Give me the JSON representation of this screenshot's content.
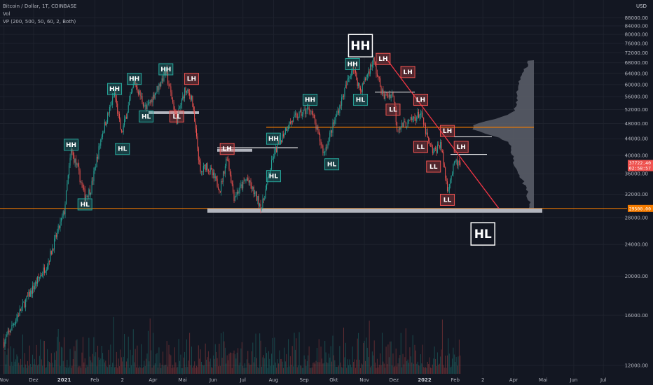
{
  "legend": {
    "line1": "Bitcoin / Dollar, 1T, COINBASE",
    "line2": "Vol",
    "line3": "VP (200, 500, 50, 60, 2, Both)"
  },
  "axis": {
    "unit": "USD",
    "y_ticks": [
      "88000.00",
      "84000.00",
      "80000.00",
      "76000.00",
      "72000.00",
      "68000.00",
      "64000.00",
      "60000.00",
      "56000.00",
      "52000.00",
      "48000.00",
      "44000.00",
      "40000.00",
      "36000.00",
      "32000.00",
      "28000.00",
      "24000.00",
      "20000.00",
      "16000.00",
      "12000.00"
    ],
    "y_values": [
      88000,
      84000,
      80000,
      76000,
      72000,
      68000,
      64000,
      60000,
      56000,
      52000,
      48000,
      44000,
      40000,
      36000,
      32000,
      28000,
      24000,
      20000,
      16000,
      12000
    ],
    "x_ticks": [
      {
        "label": "Nov",
        "bold": false
      },
      {
        "label": "Dez",
        "bold": false
      },
      {
        "label": "2021",
        "bold": true
      },
      {
        "label": "Feb",
        "bold": false
      },
      {
        "label": "2",
        "bold": false
      },
      {
        "label": "Apr",
        "bold": false
      },
      {
        "label": "Mai",
        "bold": false
      },
      {
        "label": "Jun",
        "bold": false
      },
      {
        "label": "Jul",
        "bold": false
      },
      {
        "label": "Aug",
        "bold": false
      },
      {
        "label": "Sep",
        "bold": false
      },
      {
        "label": "Okt",
        "bold": false
      },
      {
        "label": "Nov",
        "bold": false
      },
      {
        "label": "Dez",
        "bold": false
      },
      {
        "label": "2022",
        "bold": true
      },
      {
        "label": "Feb",
        "bold": false
      },
      {
        "label": "2",
        "bold": false
      },
      {
        "label": "Apr",
        "bold": false
      },
      {
        "label": "Mai",
        "bold": false
      },
      {
        "label": "Jun",
        "bold": false
      },
      {
        "label": "Jul",
        "bold": false
      }
    ]
  },
  "price_tags": {
    "current_price": "37722.40",
    "countdown": "02:58:57",
    "support": "29500.00"
  },
  "colors": {
    "background": "#131722",
    "up": "#26a69a",
    "down": "#ef5350",
    "hh_label": "#26a69a",
    "ll_label": "#ef5350",
    "support_zone": "#b2b5be",
    "orange_line": "#f57c00",
    "trendline": "#f23645",
    "volume_profile": "#5d606b"
  },
  "chart_data": {
    "type": "candlestick",
    "title": "Bitcoin / Dollar, 1T, COINBASE",
    "ylim": [
      10000,
      89000
    ],
    "y_scale": "log",
    "grid": true,
    "key_levels": {
      "horizontal_orange": 47000,
      "support_zone": 29500
    },
    "price_path": [
      [
        "2020-11-01",
        13700
      ],
      [
        "2020-11-15",
        16000
      ],
      [
        "2020-12-01",
        18800
      ],
      [
        "2020-12-15",
        21500
      ],
      [
        "2021-01-01",
        29000
      ],
      [
        "2021-01-08",
        41000
      ],
      [
        "2021-01-14",
        37500
      ],
      [
        "2021-01-22",
        31500
      ],
      [
        "2021-01-28",
        33000
      ],
      [
        "2021-02-08",
        45000
      ],
      [
        "2021-02-21",
        57000
      ],
      [
        "2021-02-28",
        45000
      ],
      [
        "2021-03-13",
        61000
      ],
      [
        "2021-03-25",
        52000
      ],
      [
        "2021-04-14",
        64500
      ],
      [
        "2021-04-25",
        49000
      ],
      [
        "2021-05-03",
        58000
      ],
      [
        "2021-05-10",
        56000
      ],
      [
        "2021-05-19",
        36000
      ],
      [
        "2021-05-25",
        38000
      ],
      [
        "2021-06-08",
        33000
      ],
      [
        "2021-06-15",
        40000
      ],
      [
        "2021-06-22",
        31500
      ],
      [
        "2021-07-05",
        35000
      ],
      [
        "2021-07-20",
        29700
      ],
      [
        "2021-08-01",
        40000
      ],
      [
        "2021-08-14",
        47000
      ],
      [
        "2021-08-22",
        49500
      ],
      [
        "2021-09-07",
        52500
      ],
      [
        "2021-09-21",
        40500
      ],
      [
        "2021-10-01",
        48000
      ],
      [
        "2021-10-20",
        66500
      ],
      [
        "2021-10-28",
        58000
      ],
      [
        "2021-11-10",
        69000
      ],
      [
        "2021-11-20",
        56000
      ],
      [
        "2021-11-30",
        57000
      ],
      [
        "2021-12-04",
        47000
      ],
      [
        "2021-12-15",
        48000
      ],
      [
        "2021-12-28",
        51000
      ],
      [
        "2022-01-05",
        43000
      ],
      [
        "2022-01-10",
        40500
      ],
      [
        "2022-01-17",
        43000
      ],
      [
        "2022-01-24",
        33000
      ],
      [
        "2022-02-01",
        38500
      ],
      [
        "2022-02-07",
        37722
      ]
    ],
    "annotations": [
      {
        "text": "HH",
        "kind": "higher-high",
        "date": "2021-01-08",
        "price": 42500
      },
      {
        "text": "HL",
        "kind": "higher-low",
        "date": "2021-01-22",
        "price": 30200
      },
      {
        "text": "HL",
        "kind": "higher-low",
        "date": "2021-03-01",
        "price": 41500
      },
      {
        "text": "HH",
        "kind": "higher-high",
        "date": "2021-02-21",
        "price": 58500
      },
      {
        "text": "HH",
        "kind": "higher-high",
        "date": "2021-03-13",
        "price": 62000
      },
      {
        "text": "HH",
        "kind": "higher-high",
        "date": "2021-04-14",
        "price": 65500
      },
      {
        "text": "HL",
        "kind": "higher-low",
        "date": "2021-03-25",
        "price": 50000
      },
      {
        "text": "LL",
        "kind": "lower-low",
        "date": "2021-04-25",
        "price": 50000
      },
      {
        "text": "LH",
        "kind": "lower-high",
        "date": "2021-05-10",
        "price": 62000
      },
      {
        "text": "LH",
        "kind": "lower-high",
        "date": "2021-06-15",
        "price": 41500
      },
      {
        "text": "HH",
        "kind": "higher-high",
        "date": "2021-08-01",
        "price": 44000
      },
      {
        "text": "HL",
        "kind": "higher-low",
        "date": "2021-08-01",
        "price": 35500
      },
      {
        "text": "HH",
        "kind": "higher-high",
        "date": "2021-09-07",
        "price": 55000
      },
      {
        "text": "HL",
        "kind": "higher-low",
        "date": "2021-09-29",
        "price": 38000
      },
      {
        "text": "HH",
        "kind": "higher-high",
        "date": "2021-10-20",
        "price": 67500
      },
      {
        "text": "HL",
        "kind": "higher-low",
        "date": "2021-10-28",
        "price": 55000
      },
      {
        "text": "LH",
        "kind": "lower-high",
        "date": "2021-11-20",
        "price": 69500
      },
      {
        "text": "LL",
        "kind": "lower-low",
        "date": "2021-11-30",
        "price": 52000
      },
      {
        "text": "LH",
        "kind": "lower-high",
        "date": "2021-12-15",
        "price": 64500
      },
      {
        "text": "LH",
        "kind": "lower-high",
        "date": "2021-12-28",
        "price": 55000
      },
      {
        "text": "LL",
        "kind": "lower-low",
        "date": "2021-12-28",
        "price": 42000
      },
      {
        "text": "LL",
        "kind": "lower-low",
        "date": "2022-01-10",
        "price": 37500
      },
      {
        "text": "LH",
        "kind": "lower-high",
        "date": "2022-01-24",
        "price": 46000
      },
      {
        "text": "LH",
        "kind": "lower-high",
        "date": "2022-02-07",
        "price": 42000
      },
      {
        "text": "LL",
        "kind": "lower-low",
        "date": "2022-01-24",
        "price": 31000
      },
      {
        "text": "HH",
        "kind": "big",
        "date": "2021-10-28",
        "price": 75000
      },
      {
        "text": "HL",
        "kind": "big",
        "date": "2022-03-01",
        "price": 25500
      }
    ]
  }
}
